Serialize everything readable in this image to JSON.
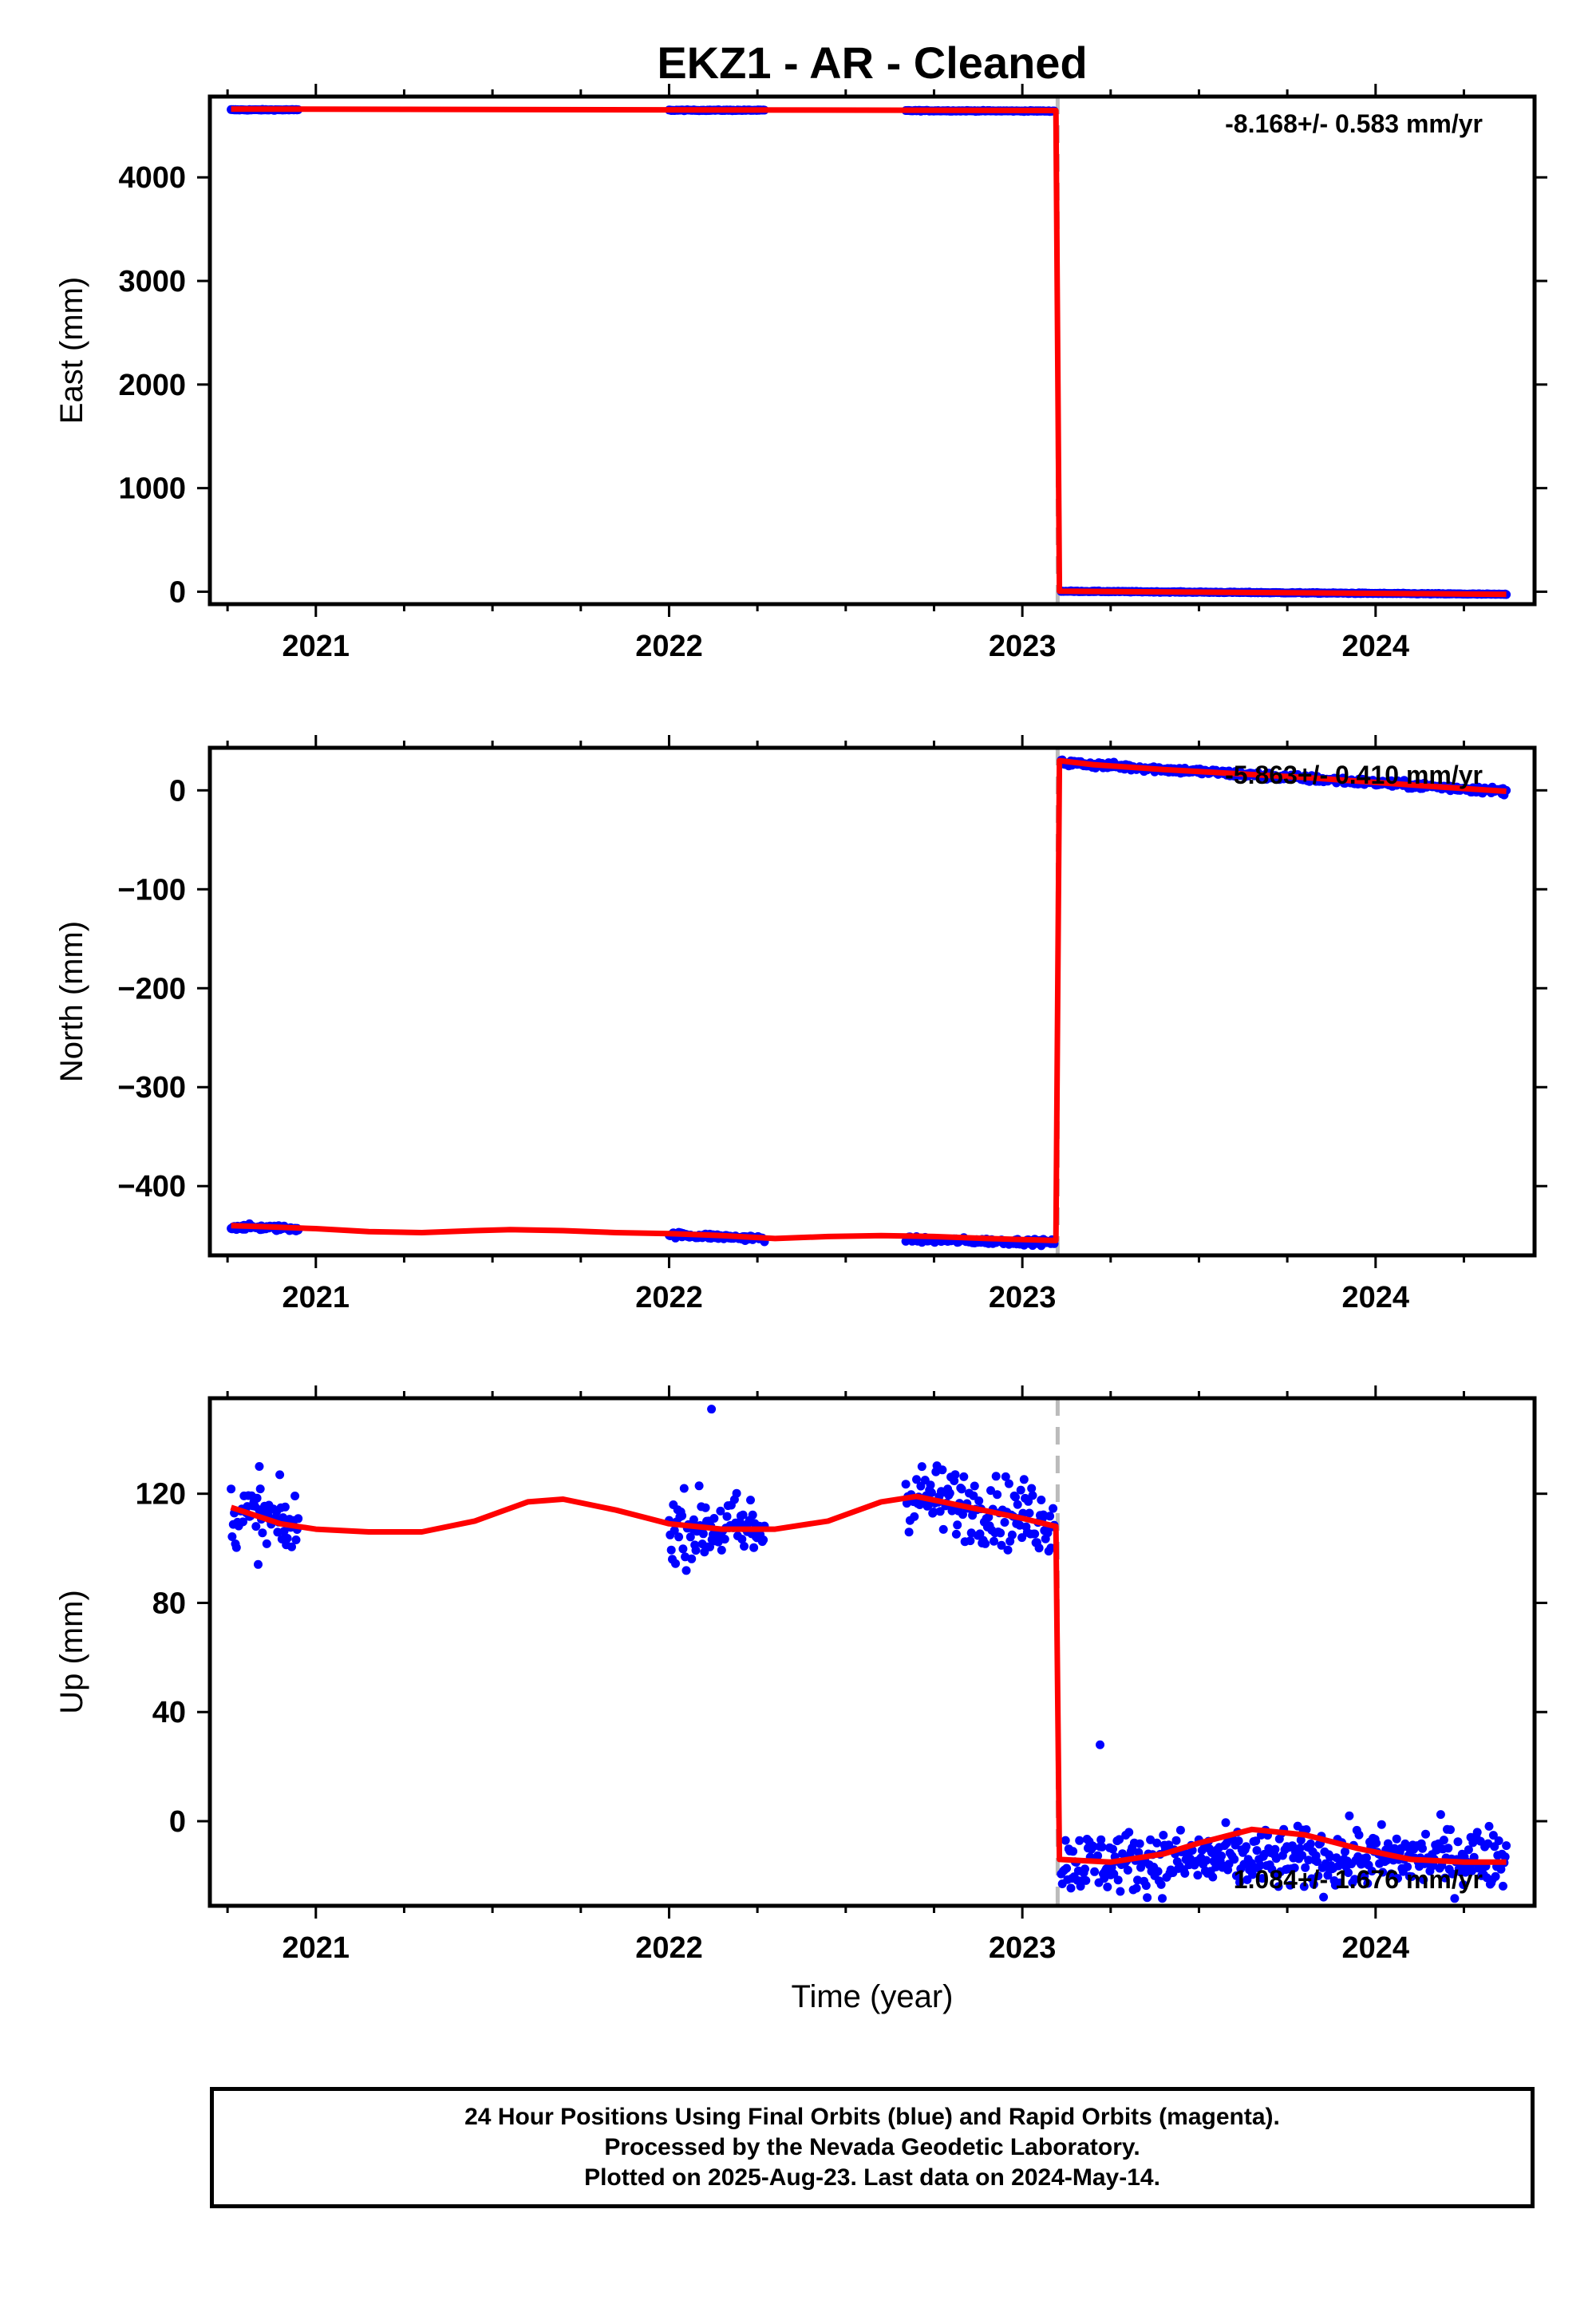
{
  "title": "EKZ1  - AR - Cleaned",
  "xlabel": "Time (year)",
  "footer": {
    "line1": "24 Hour Positions Using Final Orbits (blue) and Rapid Orbits (magenta).",
    "line2": "Processed by the Nevada Geodetic Laboratory.",
    "line3": "Plotted on 2025-Aug-23. Last data on 2024-May-14."
  },
  "colors": {
    "points": "#0000ff",
    "model": "#ff0000",
    "offset_line": "#bbbbbb",
    "frame": "#000000"
  },
  "chart_data": [
    {
      "type": "scatter",
      "component": "east",
      "ylabel": "East (mm)",
      "rate_label": "-8.168+/- 0.583 mm/yr",
      "xlim": [
        2020.7,
        2024.45
      ],
      "ylim": [
        -120,
        4780
      ],
      "yticks": [
        0,
        1000,
        2000,
        3000,
        4000
      ],
      "ytick_labels": [
        "0",
        "1000",
        "2000",
        "3000",
        "4000"
      ],
      "xticks": [
        2021,
        2022,
        2023,
        2024
      ],
      "xtick_labels": [
        "2021",
        "2022",
        "2023",
        "2024"
      ],
      "offset_epoch": 2023.1,
      "data_segments": [
        {
          "x": [
            2020.76,
            2020.95
          ],
          "y0": 4652,
          "y1": 4652,
          "scatter": 3
        },
        {
          "x": [
            2022.0,
            2022.27
          ],
          "y0": 4648,
          "y1": 4648,
          "scatter": 3
        },
        {
          "x": [
            2022.67,
            2023.09
          ],
          "y0": 4644,
          "y1": 4640,
          "scatter": 3
        },
        {
          "x": [
            2023.11,
            2024.37
          ],
          "y0": 5,
          "y1": -25,
          "scatter": 3
        }
      ],
      "model": {
        "x": [
          2020.76,
          2023.095,
          2023.105,
          2024.37
        ],
        "y": [
          4660,
          4645,
          5,
          -25
        ]
      }
    },
    {
      "type": "scatter",
      "component": "north",
      "ylabel": "North (mm)",
      "rate_label": "-5.863+/- 0.410 mm/yr",
      "xlim": [
        2020.7,
        2024.45
      ],
      "ylim": [
        -470,
        43
      ],
      "yticks": [
        -400,
        -300,
        -200,
        -100,
        0
      ],
      "ytick_labels": [
        "−400",
        "−300",
        "−200",
        "−100",
        "0"
      ],
      "xticks": [
        2021,
        2022,
        2023,
        2024
      ],
      "xtick_labels": [
        "2021",
        "2022",
        "2023",
        "2024"
      ],
      "offset_epoch": 2023.1,
      "data_segments": [
        {
          "x": [
            2020.76,
            2020.95
          ],
          "y0": -441,
          "y1": -443,
          "scatter": 2
        },
        {
          "x": [
            2022.0,
            2022.27
          ],
          "y0": -449,
          "y1": -453,
          "scatter": 2
        },
        {
          "x": [
            2022.67,
            2023.09
          ],
          "y0": -454,
          "y1": -457,
          "scatter": 2
        },
        {
          "x": [
            2023.11,
            2024.37
          ],
          "y0": 28,
          "y1": -1,
          "scatter": 2.5
        }
      ],
      "model": {
        "x": [
          2020.76,
          2020.85,
          2021.0,
          2021.15,
          2021.3,
          2021.45,
          2021.55,
          2021.7,
          2021.85,
          2022.0,
          2022.15,
          2022.3,
          2022.45,
          2022.6,
          2022.75,
          2022.9,
          2023.095,
          2023.105,
          2023.2,
          2023.4,
          2023.6,
          2023.8,
          2024.0,
          2024.2,
          2024.37
        ],
        "y": [
          -440,
          -441,
          -443,
          -446,
          -447,
          -445,
          -444,
          -445,
          -447,
          -448,
          -450,
          -453,
          -451,
          -450,
          -451,
          -453,
          -455,
          30,
          26,
          21,
          17,
          13,
          8,
          3,
          -1
        ]
      }
    },
    {
      "type": "scatter",
      "component": "up",
      "ylabel": "Up (mm)",
      "rate_label": "1.084+/- 1.676 mm/yr",
      "xlim": [
        2020.7,
        2024.45
      ],
      "ylim": [
        -31,
        155
      ],
      "yticks": [
        0,
        40,
        80,
        120
      ],
      "ytick_labels": [
        "0",
        "40",
        "80",
        "120"
      ],
      "xticks": [
        2021,
        2022,
        2023,
        2024
      ],
      "xtick_labels": [
        "2021",
        "2022",
        "2023",
        "2024"
      ],
      "offset_epoch": 2023.1,
      "data_segments": [
        {
          "x": [
            2020.76,
            2020.95
          ],
          "y0": 113,
          "y1": 107,
          "scatter": 9
        },
        {
          "x": [
            2022.0,
            2022.27
          ],
          "y0": 108,
          "y1": 107,
          "scatter": 9
        },
        {
          "x": [
            2022.67,
            2023.09
          ],
          "y0": 120,
          "y1": 110,
          "scatter": 9
        },
        {
          "x": [
            2023.11,
            2024.37
          ],
          "y0": -15,
          "y1": -13,
          "scatter": 8
        }
      ],
      "outliers": [
        {
          "x": 2022.12,
          "y": 151
        },
        {
          "x": 2020.84,
          "y": 130
        },
        {
          "x": 2023.22,
          "y": 28
        }
      ],
      "model": {
        "x": [
          2020.76,
          2020.9,
          2021.0,
          2021.15,
          2021.3,
          2021.45,
          2021.6,
          2021.7,
          2021.85,
          2022.0,
          2022.15,
          2022.3,
          2022.45,
          2022.6,
          2022.7,
          2022.85,
          2023.0,
          2023.095,
          2023.105,
          2023.25,
          2023.4,
          2023.5,
          2023.65,
          2023.8,
          2023.95,
          2024.1,
          2024.25,
          2024.37
        ],
        "y": [
          115,
          109,
          107,
          106,
          106,
          110,
          117,
          118,
          114,
          109,
          107,
          107,
          110,
          117,
          119,
          115,
          111,
          108,
          -14,
          -15,
          -12,
          -8,
          -3,
          -5,
          -10,
          -14,
          -15,
          -15
        ]
      }
    }
  ]
}
